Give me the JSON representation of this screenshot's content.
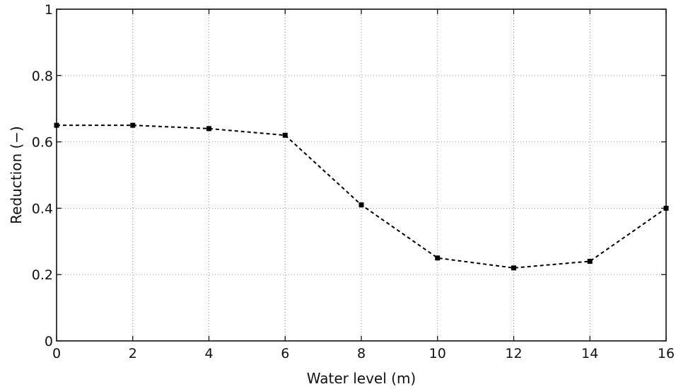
{
  "chart_data": {
    "type": "line",
    "title": "",
    "xlabel": "Water level (m)",
    "ylabel": "Reduction (−)",
    "xlim": [
      0,
      16
    ],
    "ylim": [
      0,
      1
    ],
    "xticks": [
      0,
      2,
      4,
      6,
      8,
      10,
      12,
      14,
      16
    ],
    "yticks": [
      0,
      0.2,
      0.4,
      0.6,
      0.8,
      1
    ],
    "xtick_labels": [
      "0",
      "2",
      "4",
      "6",
      "8",
      "10",
      "12",
      "14",
      "16"
    ],
    "ytick_labels": [
      "0",
      "0.2",
      "0.4",
      "0.6",
      "0.8",
      "1"
    ],
    "grid": true,
    "series": [
      {
        "x": [
          0,
          2,
          4,
          6,
          8,
          10,
          12,
          14,
          16
        ],
        "y": [
          0.65,
          0.65,
          0.64,
          0.62,
          0.41,
          0.25,
          0.22,
          0.24,
          0.4
        ],
        "line_style": "dashed",
        "marker": "square",
        "color": "#000000"
      }
    ]
  }
}
